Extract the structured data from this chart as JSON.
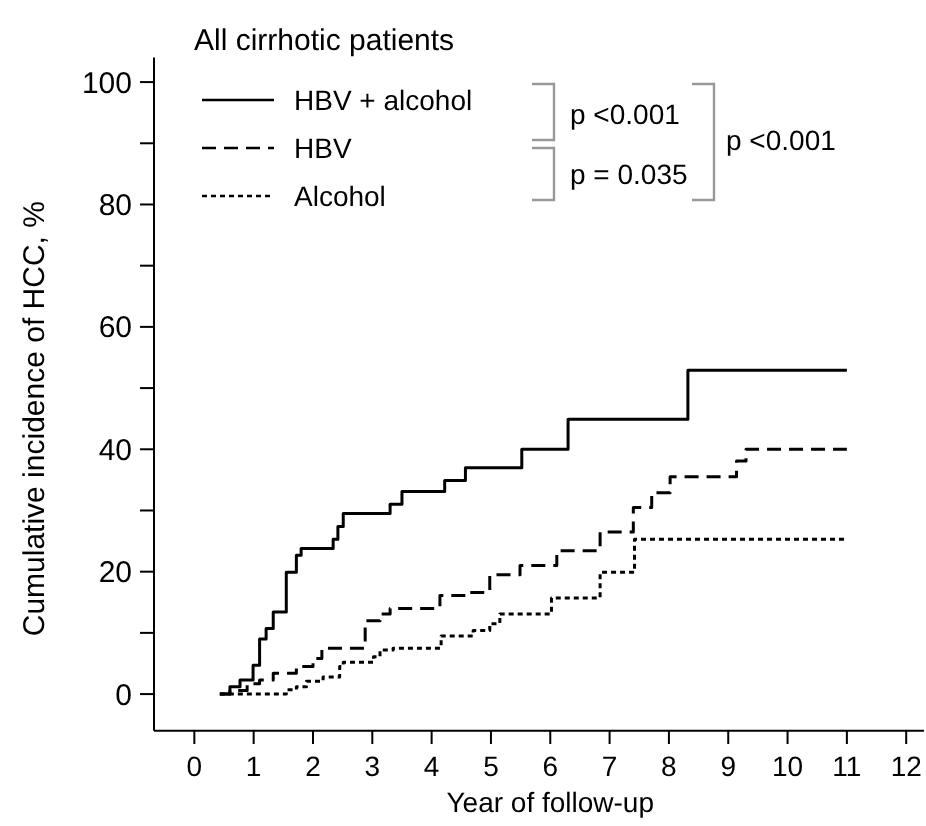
{
  "chart_data": {
    "type": "step",
    "legend_title": "All cirrhotic patients",
    "xlabel": "Year of follow-up",
    "ylabel": "Cumulative incidence of HCC, %",
    "xlim": [
      -0.68,
      12.3
    ],
    "ylim": [
      -6,
      104
    ],
    "xticks": [
      0,
      1,
      2,
      3,
      4,
      5,
      6,
      7,
      8,
      9,
      10,
      11,
      12
    ],
    "yticks": [
      0,
      {
        "value": 10,
        "label": null
      },
      20,
      {
        "value": 30,
        "label": null
      },
      40,
      {
        "value": 50,
        "label": null
      },
      60,
      {
        "value": 70,
        "label": null
      },
      80,
      {
        "value": 90,
        "label": null
      },
      100
    ],
    "legend": "top left",
    "annotations": [
      "p <0.001",
      "p = 0.035",
      "p <0.001"
    ],
    "series": [
      {
        "name": "HBV + alcohol",
        "color": "#000000",
        "line_style": "solid",
        "x": [
          0.43,
          0.6,
          0.77,
          0.99,
          1.1,
          1.21,
          1.33,
          1.55,
          1.72,
          1.8,
          2.34,
          2.42,
          2.51,
          3.3,
          3.5,
          4.22,
          4.57,
          5.52,
          6.3,
          8.32,
          11
        ],
        "values": [
          0,
          1.2,
          2.3,
          4.7,
          9.0,
          10.7,
          13.4,
          19.9,
          22.7,
          23.8,
          25.3,
          27.4,
          29.5,
          31.0,
          33.1,
          34.9,
          37.0,
          40.0,
          44.9,
          52.9,
          52.9
        ]
      },
      {
        "name": "HBV",
        "color": "#000000",
        "line_style": "dashed",
        "x": [
          0.43,
          0.6,
          0.89,
          1.1,
          1.33,
          1.72,
          2.0,
          2.15,
          2.88,
          3.13,
          3.3,
          4.14,
          4.59,
          4.98,
          5.49,
          6.11,
          6.84,
          7.4,
          7.71,
          8.02,
          9.14,
          9.3,
          11
        ],
        "values": [
          0,
          0.6,
          1.7,
          2.3,
          3.4,
          4.5,
          5.8,
          7.5,
          12.0,
          13.1,
          14.0,
          16.1,
          16.6,
          19.5,
          21,
          23.4,
          26.5,
          30.5,
          32.9,
          35.5,
          38.1,
          40,
          40
        ]
      },
      {
        "name": "Alcohol",
        "color": "#000000",
        "line_style": "dotted",
        "x": [
          0.43,
          1.55,
          1.72,
          1.89,
          2.17,
          2.45,
          2.51,
          3.02,
          3.13,
          3.35,
          4.16,
          4.7,
          4.98,
          5.15,
          6.02,
          6.84,
          7.42,
          11
        ],
        "values": [
          0,
          0.7,
          1.2,
          2.1,
          2.8,
          4.5,
          5.2,
          6.1,
          7.2,
          7.5,
          9.5,
          10.4,
          11.5,
          13.1,
          15.7,
          19.9,
          25.3,
          25.3
        ]
      }
    ]
  }
}
